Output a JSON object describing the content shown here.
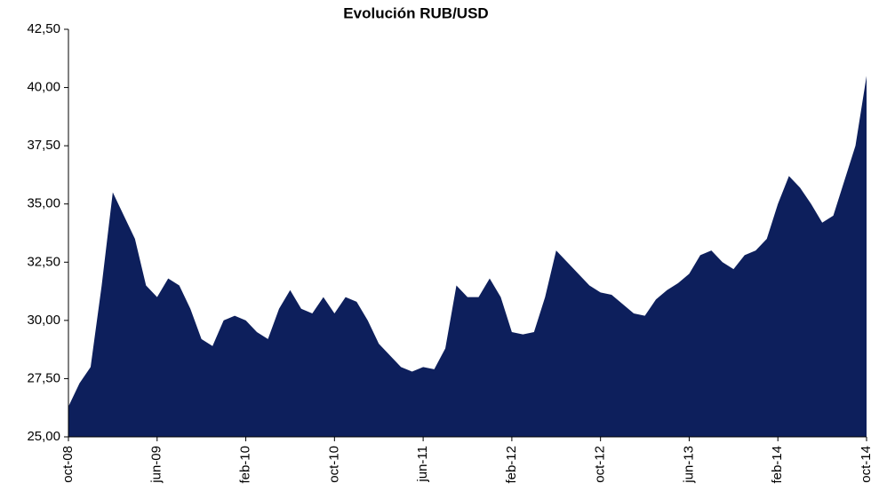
{
  "chart_data": {
    "type": "area",
    "title": "Evolución RUB/USD",
    "color": "#0d1f5c",
    "categories": [
      "oct-08",
      null,
      null,
      null,
      null,
      null,
      null,
      null,
      "jun-09",
      null,
      null,
      null,
      null,
      null,
      null,
      null,
      "feb-10",
      null,
      null,
      null,
      null,
      null,
      null,
      null,
      "oct-10",
      null,
      null,
      null,
      null,
      null,
      null,
      null,
      "jun-11",
      null,
      null,
      null,
      null,
      null,
      null,
      null,
      "feb-12",
      null,
      null,
      null,
      null,
      null,
      null,
      null,
      "oct-12",
      null,
      null,
      null,
      null,
      null,
      null,
      null,
      "jun-13",
      null,
      null,
      null,
      null,
      null,
      null,
      null,
      "feb-14",
      null,
      null,
      null,
      null,
      null,
      null,
      null,
      "oct-14"
    ],
    "values": [
      26.3,
      27.3,
      28.0,
      31.5,
      35.5,
      34.5,
      33.5,
      31.5,
      31.0,
      31.8,
      31.5,
      30.5,
      29.2,
      28.9,
      30.0,
      30.2,
      30.0,
      29.5,
      29.2,
      30.5,
      31.3,
      30.5,
      30.3,
      31.0,
      30.3,
      31.0,
      30.8,
      30.0,
      29.0,
      28.5,
      28.0,
      27.8,
      28.0,
      27.9,
      28.8,
      31.5,
      31.0,
      31.0,
      31.8,
      31.0,
      29.5,
      29.4,
      29.5,
      31.0,
      33.0,
      32.5,
      32.0,
      31.5,
      31.2,
      31.1,
      30.7,
      30.3,
      30.2,
      30.9,
      31.3,
      31.6,
      32.0,
      32.8,
      33.0,
      32.5,
      32.2,
      32.8,
      33.0,
      33.5,
      35.0,
      36.2,
      35.7,
      35.0,
      34.2,
      34.5,
      36.0,
      37.5,
      40.5
    ],
    "ylim": [
      25,
      42.5
    ],
    "yticks": [
      {
        "value": 25,
        "label": "25,00"
      },
      {
        "value": 27.5,
        "label": "27,50"
      },
      {
        "value": 30,
        "label": "30,00"
      },
      {
        "value": 32.5,
        "label": "32,50"
      },
      {
        "value": 35,
        "label": "35,00"
      },
      {
        "value": 37.5,
        "label": "37,50"
      },
      {
        "value": 40,
        "label": "40,00"
      },
      {
        "value": 42.5,
        "label": "42,50"
      }
    ]
  }
}
